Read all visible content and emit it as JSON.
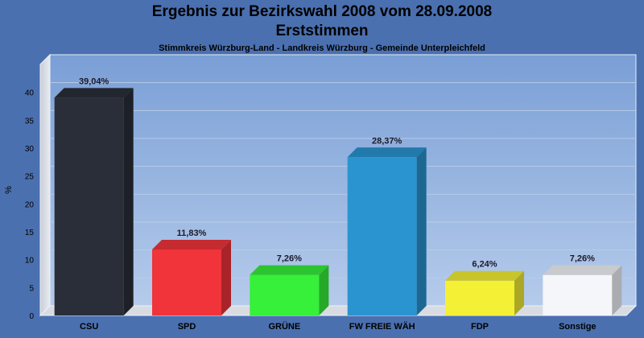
{
  "chart_data": {
    "type": "bar",
    "title": "Ergebnis zur Bezirkswahl 2008 vom 28.09.2008",
    "subtitle": "Erststimmen",
    "subtitle2": "Stimmkreis Würzburg-Land - Landkreis Würzburg - Gemeinde Unterpleichfeld",
    "xlabel": "",
    "ylabel": "%",
    "ylim": [
      0,
      45
    ],
    "yticks": [
      0,
      5,
      10,
      15,
      20,
      25,
      30,
      35,
      40
    ],
    "grid": true,
    "categories": [
      "CSU",
      "SPD",
      "GRÜNE",
      "FW FREIE WÄH",
      "FDP",
      "Sonstige"
    ],
    "values": [
      39.04,
      11.83,
      7.26,
      28.37,
      6.24,
      7.26
    ],
    "value_labels": [
      "39,04%",
      "11,83%",
      "7,26%",
      "28,37%",
      "6,24%",
      "7,26%"
    ],
    "colors": [
      "#2a2e38",
      "#f0343a",
      "#36f03a",
      "#2a94d0",
      "#f4f036",
      "#f4f6fa"
    ]
  }
}
